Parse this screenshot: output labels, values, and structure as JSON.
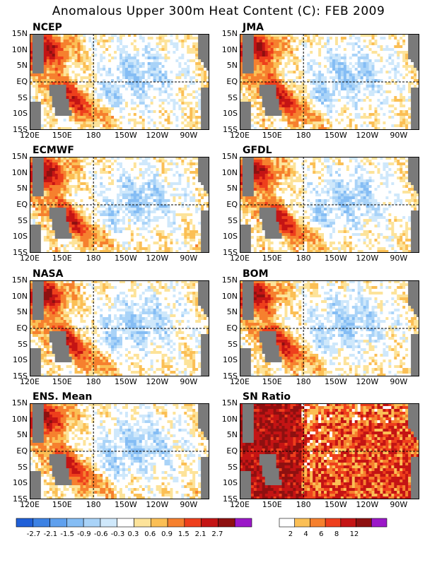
{
  "title": "Anomalous Upper 300m Heat Content (C): FEB 2009",
  "colors": {
    "land": "#7a7a7a",
    "anomaly_levels": [
      "#2060d8",
      "#3d82e4",
      "#5fa0ee",
      "#85bdf4",
      "#a9d3f8",
      "#cfe8fb",
      "#ffffff",
      "#fde39a",
      "#fbbf55",
      "#f6802e",
      "#ee3f1c",
      "#c41414",
      "#8e1010",
      "#9b18c8"
    ],
    "sn_levels": [
      "#ffffff",
      "#fbbf55",
      "#f6802e",
      "#ee3f1c",
      "#c41414",
      "#8e1010",
      "#9b18c8"
    ]
  },
  "chart_data": [
    {
      "type": "heatmap",
      "name": "NCEP",
      "x_ticks": [
        "120E",
        "150E",
        "180",
        "150W",
        "120W",
        "90W"
      ],
      "y_ticks": [
        "15N",
        "10N",
        "5N",
        "EQ",
        "5S",
        "10S",
        "15S"
      ]
    },
    {
      "type": "heatmap",
      "name": "JMA",
      "x_ticks": [
        "120E",
        "150E",
        "180",
        "150W",
        "120W",
        "90W"
      ],
      "y_ticks": [
        "15N",
        "10N",
        "5N",
        "EQ",
        "5S",
        "10S",
        "15S"
      ]
    },
    {
      "type": "heatmap",
      "name": "ECMWF",
      "x_ticks": [
        "120E",
        "150E",
        "180",
        "150W",
        "120W",
        "90W"
      ],
      "y_ticks": [
        "15N",
        "10N",
        "5N",
        "EQ",
        "5S",
        "10S",
        "15S"
      ]
    },
    {
      "type": "heatmap",
      "name": "GFDL",
      "x_ticks": [
        "120E",
        "150E",
        "180",
        "150W",
        "120W",
        "90W"
      ],
      "y_ticks": [
        "15N",
        "10N",
        "5N",
        "EQ",
        "5S",
        "10S",
        "15S"
      ]
    },
    {
      "type": "heatmap",
      "name": "NASA",
      "x_ticks": [
        "120E",
        "150E",
        "180",
        "150W",
        "120W",
        "90W"
      ],
      "y_ticks": [
        "15N",
        "10N",
        "5N",
        "EQ",
        "5S",
        "10S",
        "15S"
      ]
    },
    {
      "type": "heatmap",
      "name": "BOM",
      "x_ticks": [
        "120E",
        "150E",
        "180",
        "150W",
        "120W",
        "90W"
      ],
      "y_ticks": [
        "15N",
        "10N",
        "5N",
        "EQ",
        "5S",
        "10S",
        "15S"
      ]
    },
    {
      "type": "heatmap",
      "name": "ENS. Mean",
      "x_ticks": [
        "120E",
        "150E",
        "180",
        "150W",
        "120W",
        "90W"
      ],
      "y_ticks": [
        "15N",
        "10N",
        "5N",
        "EQ",
        "5S",
        "10S",
        "15S"
      ]
    },
    {
      "type": "heatmap",
      "name": "SN Ratio",
      "x_ticks": [
        "120E",
        "150E",
        "180",
        "150W",
        "120W",
        "90W"
      ],
      "y_ticks": [
        "15N",
        "10N",
        "5N",
        "EQ",
        "5S",
        "10S",
        "15S"
      ]
    }
  ],
  "legend_anomaly": [
    "-2.7",
    "-2.1",
    "-1.5",
    "-0.9",
    "-0.6",
    "-0.3",
    "0.3",
    "0.6",
    "0.9",
    "1.5",
    "2.1",
    "2.7"
  ],
  "legend_sn": [
    "2",
    "4",
    "6",
    "8",
    "12"
  ]
}
